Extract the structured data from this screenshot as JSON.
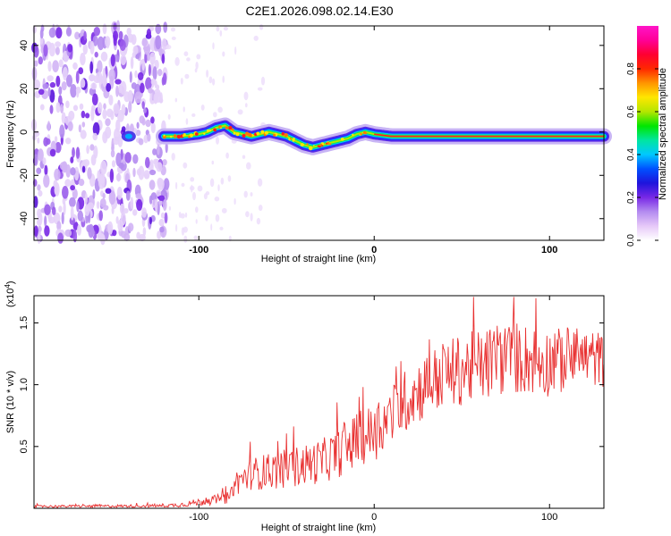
{
  "title": "C2E1.2026.098.02.14.E30",
  "chart_data": [
    {
      "type": "heatmap",
      "name": "spectrogram",
      "xlabel": "Height of straight line (km)",
      "ylabel": "Frequency (Hz)",
      "xlim": [
        -194,
        131
      ],
      "ylim": [
        -50,
        49
      ],
      "xticks": [
        -100,
        0,
        100
      ],
      "yticks": [
        -40,
        -20,
        0,
        20,
        40
      ],
      "colorbar": {
        "label": "Normalized spectral amplitude",
        "range": [
          0,
          1
        ],
        "ticks": [
          0.0,
          0.2,
          0.4,
          0.6,
          0.8
        ],
        "tick_labels": [
          "0.0",
          "0.2",
          "0.4",
          "0.6",
          "0.8"
        ],
        "colors": [
          "#ffffff",
          "#e6c8f8",
          "#b48cf0",
          "#7828e6",
          "#1e14dc",
          "#0050ff",
          "#00c8ff",
          "#00e6a0",
          "#00e600",
          "#b4e600",
          "#ffe600",
          "#ff9600",
          "#ff2800",
          "#ff0032",
          "#ff0096",
          "#ff14c8"
        ]
      },
      "signal_track": {
        "x": [
          -120,
          -110,
          -100,
          -95,
          -90,
          -85,
          -80,
          -75,
          -70,
          -65,
          -60,
          -55,
          -50,
          -45,
          -40,
          -35,
          -30,
          -25,
          -20,
          -15,
          -10,
          -5,
          0,
          10,
          20,
          40,
          60,
          80,
          100,
          131
        ],
        "y": [
          -2,
          -2,
          -1,
          0,
          2,
          3,
          0,
          -1,
          -2,
          -1,
          0,
          -1,
          -2,
          -4,
          -6,
          -7,
          -6,
          -5,
          -4,
          -3,
          -1,
          0,
          -1,
          -2,
          -2,
          -2,
          -2,
          -2,
          -2,
          -2
        ]
      },
      "noise_region_x": [
        -194,
        -118
      ]
    },
    {
      "type": "line",
      "name": "snr",
      "xlabel": "Height of straight line (km)",
      "ylabel": "SNR (10 * v/v)",
      "multiplier_label": "(x10",
      "multiplier_exponent": "4",
      "multiplier_close": ")",
      "xlim": [
        -194,
        131
      ],
      "ylim": [
        0,
        1.72
      ],
      "xticks": [
        -100,
        0,
        100
      ],
      "yticks": [
        0.5,
        1.0,
        1.5
      ],
      "ytick_labels": [
        "0.5",
        "1.0",
        "1.5"
      ],
      "series": [
        {
          "name": "SNR",
          "color": "#e83030",
          "envelope_x": [
            -194,
            -120,
            -110,
            -100,
            -90,
            -82,
            -80,
            -70,
            -60,
            -50,
            -40,
            -30,
            -20,
            -10,
            0,
            10,
            20,
            30,
            40,
            50,
            60,
            70,
            80,
            90,
            100,
            110,
            120,
            131
          ],
          "envelope_y": [
            0.015,
            0.02,
            0.03,
            0.05,
            0.07,
            0.09,
            0.2,
            0.28,
            0.3,
            0.32,
            0.35,
            0.38,
            0.45,
            0.55,
            0.62,
            0.75,
            0.9,
            1.0,
            1.08,
            1.12,
            1.15,
            1.2,
            1.22,
            1.2,
            1.18,
            1.2,
            1.22,
            1.2
          ],
          "spread_y": [
            0.01,
            0.012,
            0.02,
            0.03,
            0.04,
            0.05,
            0.1,
            0.13,
            0.15,
            0.16,
            0.17,
            0.18,
            0.2,
            0.22,
            0.24,
            0.25,
            0.26,
            0.27,
            0.28,
            0.29,
            0.3,
            0.3,
            0.3,
            0.29,
            0.28,
            0.26,
            0.25,
            0.22
          ]
        }
      ]
    }
  ]
}
